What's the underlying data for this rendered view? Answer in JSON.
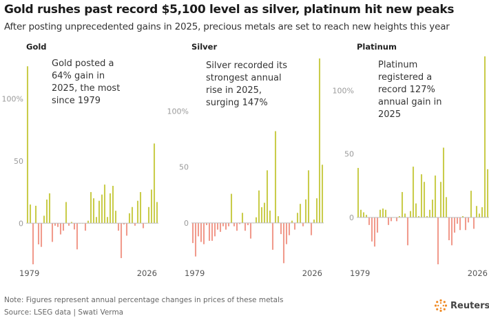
{
  "header": {
    "title": "Gold rushes past record $5,100 level as silver, platinum hit new peaks",
    "subtitle": "After posting unprecedented gains in 2025, precious metals are set to reach new heights this year"
  },
  "footer": {
    "note": "Note: Figures represent annual percentage changes in prices of these metals",
    "source": "Source: LSEG data | Swati Verma",
    "logo_text": "Reuters"
  },
  "colors": {
    "positive": "#c9cc4a",
    "negative": "#f19a8c",
    "axis": "#bdbdbd"
  },
  "chart_data": [
    {
      "type": "bar",
      "title": "Gold",
      "annotation": "Gold posted a\n64% gain in\n2025, the most\nsince 1979",
      "x_start_label": "1979",
      "x_end_label": "2026",
      "yticks": [
        0,
        50,
        100
      ],
      "ytick_labels": [
        "0",
        "50",
        "100%"
      ],
      "ylim": [
        -33,
        135
      ],
      "years": [
        1979,
        1980,
        1981,
        1982,
        1983,
        1984,
        1985,
        1986,
        1987,
        1988,
        1989,
        1990,
        1991,
        1992,
        1993,
        1994,
        1995,
        1996,
        1997,
        1998,
        1999,
        2000,
        2001,
        2002,
        2003,
        2004,
        2005,
        2006,
        2007,
        2008,
        2009,
        2010,
        2011,
        2012,
        2013,
        2014,
        2015,
        2016,
        2017,
        2018,
        2019,
        2020,
        2021,
        2022,
        2023,
        2024,
        2025,
        2026
      ],
      "values": [
        126,
        15,
        -33,
        14,
        -17,
        -19,
        6,
        19,
        24,
        -15,
        -2,
        -3,
        -9,
        -6,
        17,
        -2,
        1,
        -5,
        -21,
        0,
        0,
        -6,
        2,
        25,
        20,
        5,
        18,
        23,
        31,
        5,
        24,
        30,
        10,
        -6,
        -28,
        -1,
        -10,
        8,
        13,
        -2,
        18,
        25,
        -4,
        0,
        13,
        27,
        64,
        17
      ]
    },
    {
      "type": "bar",
      "title": "Silver",
      "annotation": "Silver recorded its\nstrongest annual\nrise in 2025,\nsurging 147%",
      "x_start_label": "1979",
      "x_end_label": "2026",
      "yticks": [
        0,
        50,
        100
      ],
      "ytick_labels": [
        "0",
        "50",
        "100%"
      ],
      "ylim": [
        -37,
        150
      ],
      "years": [
        1979,
        1980,
        1981,
        1982,
        1983,
        1984,
        1985,
        1986,
        1987,
        1988,
        1989,
        1990,
        1991,
        1992,
        1993,
        1994,
        1995,
        1996,
        1997,
        1998,
        1999,
        2000,
        2001,
        2002,
        2003,
        2004,
        2005,
        2006,
        2007,
        2008,
        2009,
        2010,
        2011,
        2012,
        2013,
        2014,
        2015,
        2016,
        2017,
        2018,
        2019,
        2020,
        2021,
        2022,
        2023,
        2024,
        2025,
        2026
      ],
      "values": [
        -18,
        -30,
        -12,
        -17,
        -19,
        -2,
        -16,
        -16,
        -12,
        -6,
        -8,
        -3,
        -6,
        -3,
        26,
        -3,
        -7,
        -1,
        9,
        -7,
        -2,
        -14,
        0,
        5,
        29,
        14,
        18,
        47,
        11,
        -24,
        82,
        6,
        -10,
        -36,
        -19,
        -11,
        2,
        -6,
        9,
        17,
        -3,
        21,
        47,
        -11,
        3,
        22,
        147,
        52
      ]
    },
    {
      "type": "bar",
      "title": "Platinum",
      "annotation": "Platinum\nregistered a\nrecord 127%\nannual gain in\n2025",
      "x_start_label": "1979",
      "x_end_label": "2026",
      "yticks": [
        0,
        50,
        100
      ],
      "ytick_labels": [
        "0",
        "50",
        "100%"
      ],
      "ylim": [
        -37,
        128
      ],
      "years": [
        1979,
        1980,
        1981,
        1982,
        1983,
        1984,
        1985,
        1986,
        1987,
        1988,
        1989,
        1990,
        1991,
        1992,
        1993,
        1994,
        1995,
        1996,
        1997,
        1998,
        1999,
        2000,
        2001,
        2002,
        2003,
        2004,
        2005,
        2006,
        2007,
        2008,
        2009,
        2010,
        2011,
        2012,
        2013,
        2014,
        2015,
        2016,
        2017,
        2018,
        2019,
        2020,
        2021,
        2022,
        2023,
        2024,
        2025,
        2026
      ],
      "values": [
        39,
        6,
        4,
        2,
        -6,
        -19,
        -23,
        -12,
        6,
        7,
        6,
        -6,
        -3,
        0,
        -3,
        1,
        20,
        3,
        -22,
        5,
        40,
        11,
        1,
        34,
        28,
        1,
        6,
        14,
        33,
        -37,
        28,
        55,
        16,
        -18,
        -22,
        -12,
        -5,
        -10,
        1,
        -10,
        -4,
        21,
        -9,
        9,
        3,
        8,
        127,
        38
      ]
    }
  ]
}
